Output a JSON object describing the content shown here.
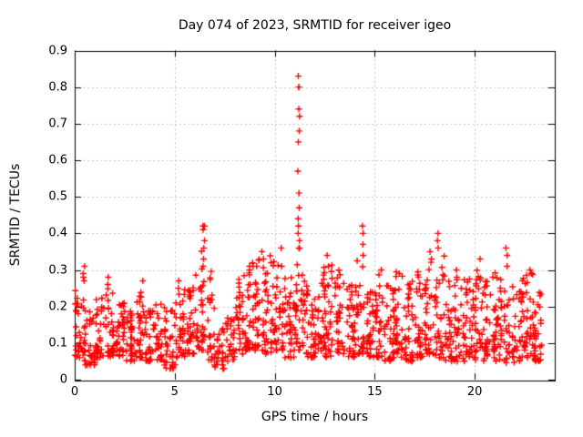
{
  "chart_data": {
    "type": "scatter",
    "title": "Day 074 of 2023, SRMTID for receiver igeo",
    "xlabel": "GPS time / hours",
    "ylabel": "SRMTID / TECUs",
    "xlim": [
      0,
      24
    ],
    "ylim": [
      0,
      0.9
    ],
    "xticks": {
      "values": [
        0,
        5,
        10,
        15,
        20
      ],
      "labels": [
        "0",
        "5",
        "10",
        "15",
        "20"
      ]
    },
    "yticks": {
      "values": [
        0,
        0.1,
        0.2,
        0.3,
        0.4,
        0.5,
        0.6,
        0.7,
        0.8,
        0.9
      ],
      "labels": [
        "0",
        "0.1",
        "0.2",
        "0.3",
        "0.4",
        "0.5",
        "0.6",
        "0.7",
        "0.8",
        "0.9"
      ]
    },
    "grid": {
      "show": true,
      "color": "#b8b8b8",
      "style": "dotted"
    },
    "border_color": "#000000",
    "background": "#ffffff",
    "marker": {
      "shape": "plus",
      "color": "#ff0000",
      "size": 7
    },
    "legend": null,
    "seed": 20230074,
    "x_data_range": [
      0.02,
      23.35
    ],
    "band_bins": [
      [
        0.0,
        0.5,
        34,
        0.06,
        0.25
      ],
      [
        0.5,
        1.0,
        32,
        0.04,
        0.21
      ],
      [
        1.0,
        1.5,
        34,
        0.06,
        0.23
      ],
      [
        1.5,
        2.0,
        32,
        0.06,
        0.25
      ],
      [
        2.0,
        2.5,
        32,
        0.06,
        0.22
      ],
      [
        2.5,
        3.0,
        32,
        0.05,
        0.2
      ],
      [
        3.0,
        3.5,
        32,
        0.06,
        0.24
      ],
      [
        3.5,
        4.0,
        30,
        0.05,
        0.19
      ],
      [
        4.0,
        4.5,
        30,
        0.05,
        0.21
      ],
      [
        4.5,
        5.0,
        30,
        0.03,
        0.2
      ],
      [
        5.0,
        5.5,
        30,
        0.06,
        0.24
      ],
      [
        5.5,
        6.0,
        32,
        0.07,
        0.3
      ],
      [
        6.0,
        6.5,
        32,
        0.08,
        0.36
      ],
      [
        6.5,
        7.0,
        28,
        0.05,
        0.3
      ],
      [
        7.0,
        7.5,
        24,
        0.03,
        0.14
      ],
      [
        7.5,
        8.0,
        28,
        0.05,
        0.17
      ],
      [
        8.0,
        8.5,
        32,
        0.07,
        0.29
      ],
      [
        8.5,
        9.0,
        34,
        0.08,
        0.32
      ],
      [
        9.0,
        9.5,
        34,
        0.08,
        0.33
      ],
      [
        9.5,
        10.0,
        34,
        0.07,
        0.34
      ],
      [
        10.0,
        10.5,
        34,
        0.08,
        0.33
      ],
      [
        10.5,
        11.0,
        32,
        0.06,
        0.29
      ],
      [
        11.0,
        11.5,
        34,
        0.08,
        0.36
      ],
      [
        11.5,
        12.0,
        32,
        0.06,
        0.26
      ],
      [
        12.0,
        12.5,
        34,
        0.07,
        0.31
      ],
      [
        12.5,
        13.0,
        32,
        0.06,
        0.33
      ],
      [
        13.0,
        13.5,
        32,
        0.07,
        0.3
      ],
      [
        13.5,
        14.0,
        32,
        0.06,
        0.27
      ],
      [
        14.0,
        14.5,
        32,
        0.07,
        0.33
      ],
      [
        14.5,
        15.0,
        32,
        0.06,
        0.26
      ],
      [
        15.0,
        15.5,
        32,
        0.06,
        0.29
      ],
      [
        15.5,
        16.0,
        32,
        0.05,
        0.26
      ],
      [
        16.0,
        16.5,
        32,
        0.06,
        0.3
      ],
      [
        16.5,
        17.0,
        32,
        0.05,
        0.27
      ],
      [
        17.0,
        17.5,
        32,
        0.06,
        0.3
      ],
      [
        17.5,
        18.0,
        32,
        0.07,
        0.34
      ],
      [
        18.0,
        18.5,
        32,
        0.06,
        0.35
      ],
      [
        18.5,
        19.0,
        30,
        0.05,
        0.27
      ],
      [
        19.0,
        19.5,
        32,
        0.05,
        0.3
      ],
      [
        19.5,
        20.0,
        32,
        0.06,
        0.28
      ],
      [
        20.0,
        20.5,
        32,
        0.05,
        0.3
      ],
      [
        20.5,
        21.0,
        32,
        0.06,
        0.29
      ],
      [
        21.0,
        21.5,
        32,
        0.05,
        0.3
      ],
      [
        21.5,
        22.0,
        30,
        0.04,
        0.26
      ],
      [
        22.0,
        22.5,
        32,
        0.05,
        0.28
      ],
      [
        22.5,
        23.0,
        34,
        0.06,
        0.3
      ],
      [
        23.0,
        23.35,
        26,
        0.05,
        0.24
      ]
    ],
    "spikes": [
      {
        "x": 0.45,
        "values": [
          0.31,
          0.29,
          0.28,
          0.27
        ]
      },
      {
        "x": 1.65,
        "values": [
          0.28,
          0.26
        ]
      },
      {
        "x": 3.4,
        "values": [
          0.27
        ]
      },
      {
        "x": 5.2,
        "values": [
          0.27,
          0.25
        ]
      },
      {
        "x": 6.45,
        "values": [
          0.42,
          0.42,
          0.41,
          0.38,
          0.36,
          0.33,
          0.31
        ]
      },
      {
        "x": 8.7,
        "values": [
          0.31,
          0.3
        ]
      },
      {
        "x": 9.4,
        "values": [
          0.35,
          0.33
        ]
      },
      {
        "x": 10.35,
        "values": [
          0.36,
          0.31
        ]
      },
      {
        "x": 11.2,
        "values": [
          0.83,
          0.8,
          0.8,
          0.74,
          0.72,
          0.68,
          0.65,
          0.57,
          0.51,
          0.47,
          0.44,
          0.42,
          0.4,
          0.38,
          0.36
        ]
      },
      {
        "x": 12.65,
        "values": [
          0.34,
          0.31
        ]
      },
      {
        "x": 14.4,
        "values": [
          0.42,
          0.4,
          0.37,
          0.34
        ]
      },
      {
        "x": 15.3,
        "values": [
          0.3
        ]
      },
      {
        "x": 17.8,
        "values": [
          0.35,
          0.33
        ]
      },
      {
        "x": 18.15,
        "values": [
          0.4,
          0.38,
          0.36
        ]
      },
      {
        "x": 19.1,
        "values": [
          0.3,
          0.28
        ]
      },
      {
        "x": 20.3,
        "values": [
          0.33
        ]
      },
      {
        "x": 20.9,
        "values": [
          0.28
        ]
      },
      {
        "x": 21.6,
        "values": [
          0.36,
          0.34,
          0.31
        ]
      },
      {
        "x": 22.8,
        "values": [
          0.3,
          0.29
        ]
      }
    ]
  }
}
